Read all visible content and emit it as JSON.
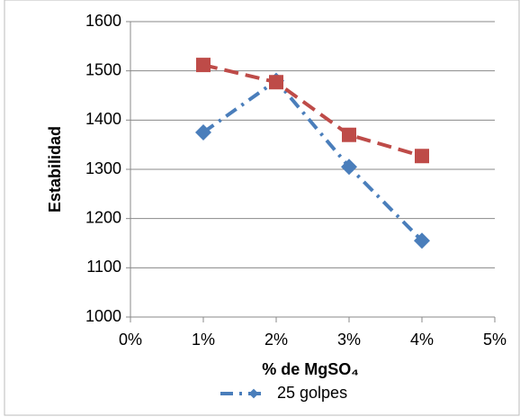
{
  "chart_data": {
    "type": "line",
    "x_label": "% de MgSO₄",
    "y_label": "Estabilidad",
    "x": [
      1,
      2,
      3,
      4
    ],
    "series": [
      {
        "name": "25 golpes",
        "color": "#4a7ebb",
        "marker": "diamond",
        "dash": "dash-dot",
        "values": [
          1375,
          1480,
          1305,
          1155
        ]
      },
      {
        "color": "#be4b48",
        "marker": "square",
        "dash": "dash",
        "values": [
          1512,
          1477,
          1370,
          1327
        ]
      }
    ],
    "xlim": [
      0,
      5
    ],
    "xticks": [
      {
        "value": 0,
        "label": "0%"
      },
      {
        "value": 1,
        "label": "1%"
      },
      {
        "value": 2,
        "label": "2%"
      },
      {
        "value": 3,
        "label": "3%"
      },
      {
        "value": 4,
        "label": "4%"
      },
      {
        "value": 5,
        "label": "5%"
      }
    ],
    "ylim": [
      1000,
      1600
    ],
    "yticks": [
      1000,
      1100,
      1200,
      1300,
      1400,
      1500,
      1600
    ],
    "grid": true,
    "legend": "bottom"
  }
}
